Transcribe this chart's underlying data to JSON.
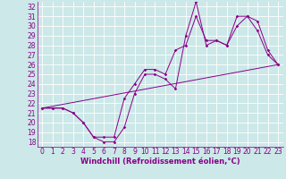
{
  "xlabel": "Windchill (Refroidissement éolien,°C)",
  "ylabel": "",
  "xlim": [
    -0.5,
    23.5
  ],
  "ylim": [
    17.5,
    32.5
  ],
  "xticks": [
    0,
    1,
    2,
    3,
    4,
    5,
    6,
    7,
    8,
    9,
    10,
    11,
    12,
    13,
    14,
    15,
    16,
    17,
    18,
    19,
    20,
    21,
    22,
    23
  ],
  "yticks": [
    18,
    19,
    20,
    21,
    22,
    23,
    24,
    25,
    26,
    27,
    28,
    29,
    30,
    31,
    32
  ],
  "bg_color": "#cce8e8",
  "grid_color": "#ffffff",
  "line_color": "#880088",
  "line1_x": [
    0,
    1,
    2,
    3,
    4,
    5,
    6,
    7,
    8,
    9,
    10,
    11,
    12,
    13,
    14,
    15,
    16,
    17,
    18,
    19,
    20,
    21,
    22,
    23
  ],
  "line1_y": [
    21.5,
    21.5,
    21.5,
    21.0,
    20.0,
    18.5,
    18.0,
    18.0,
    19.5,
    23.0,
    25.0,
    25.0,
    24.5,
    23.5,
    29.0,
    32.5,
    28.0,
    28.5,
    28.0,
    30.0,
    31.0,
    29.5,
    27.0,
    26.0
  ],
  "line2_x": [
    0,
    1,
    2,
    3,
    4,
    5,
    6,
    7,
    8,
    9,
    10,
    11,
    12,
    13,
    14,
    15,
    16,
    17,
    18,
    19,
    20,
    21,
    22,
    23
  ],
  "line2_y": [
    21.5,
    21.5,
    21.5,
    21.0,
    20.0,
    18.5,
    18.5,
    18.5,
    22.5,
    24.0,
    25.5,
    25.5,
    25.0,
    27.5,
    28.0,
    31.0,
    28.5,
    28.5,
    28.0,
    31.0,
    31.0,
    30.5,
    27.5,
    26.0
  ],
  "line3_x": [
    0,
    23
  ],
  "line3_y": [
    21.5,
    26.0
  ],
  "tick_fontsize": 5.5,
  "xlabel_fontsize": 6.0,
  "marker_size": 1.8,
  "line_width": 0.7
}
